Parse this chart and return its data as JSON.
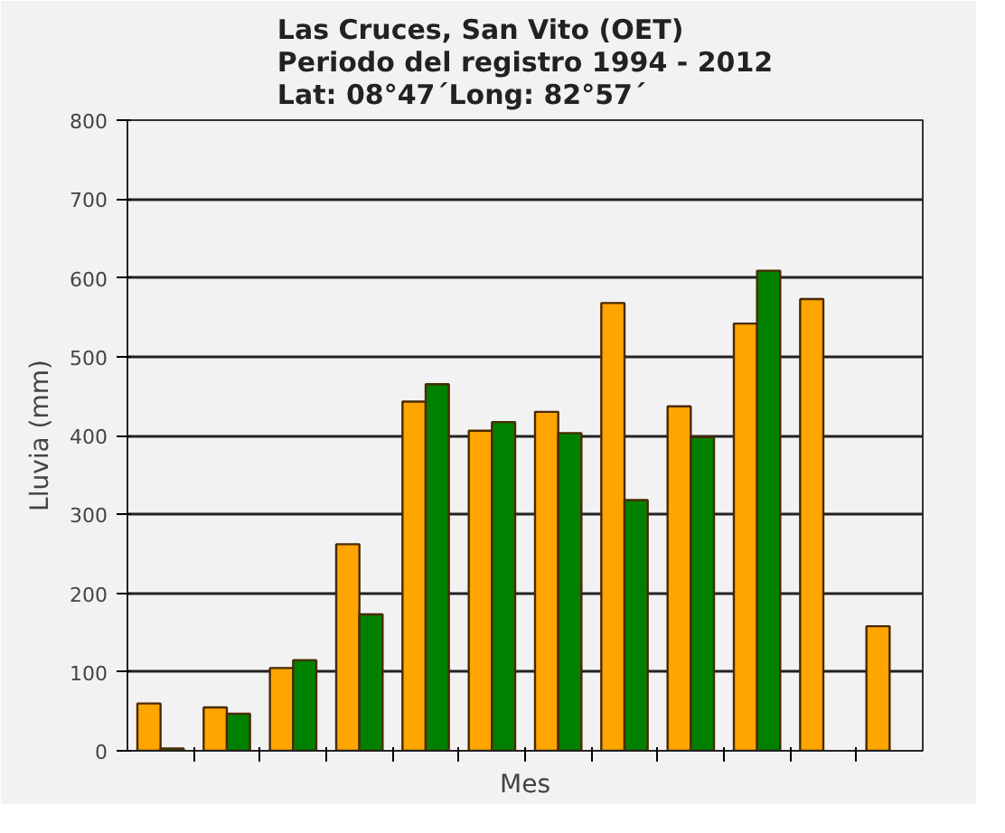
{
  "chart_data": {
    "type": "bar",
    "title": "Las Cruces, San Vito (OET)\nPeriodo del registro 1994 - 2012\nLat: 08°47´Long: 82°57´",
    "xlabel": "Mes",
    "ylabel": "Lluvia (mm)",
    "categories": [
      null,
      null,
      null,
      null,
      null,
      null,
      null,
      null,
      null,
      null,
      null,
      null
    ],
    "series": [
      {
        "color": "#ffa500",
        "values": [
          60,
          55,
          105,
          262,
          443,
          406,
          430,
          568,
          437,
          542,
          573,
          158
        ]
      },
      {
        "color": "#008000",
        "values": [
          3,
          47,
          115,
          173,
          465,
          417,
          403,
          318,
          398,
          609,
          null,
          null
        ]
      }
    ],
    "ylim": [
      0,
      800
    ],
    "yticks": [
      0,
      100,
      200,
      300,
      400,
      500,
      600,
      700,
      800
    ],
    "grid": "y"
  }
}
